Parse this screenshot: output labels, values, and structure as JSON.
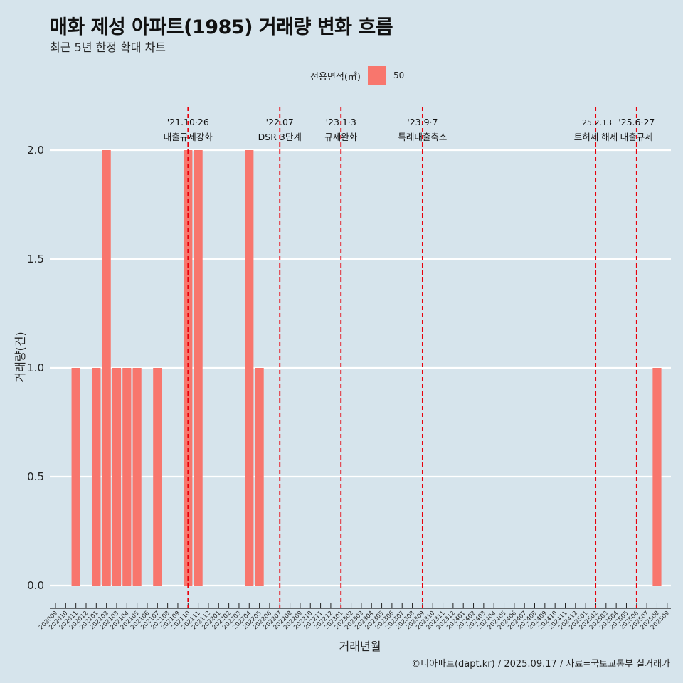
{
  "title": "매화 제성 아파트(1985) 거래량 변화 흐름",
  "subtitle": "최근 5년 한정 확대 차트",
  "caption": "©디아파트(dapt.kr) / 2025.09.17 / 자료=국토교통부 실거래가",
  "legend": {
    "title": "전용면적(㎡)",
    "items": [
      {
        "label": "50",
        "color": "#f8766d"
      }
    ]
  },
  "colors": {
    "bar": "#f8766d",
    "background": "#d6e4ec",
    "grid": "#ffffff",
    "event_line": "#e8000b"
  },
  "chart_data": {
    "type": "bar",
    "xlabel": "거래년월",
    "ylabel": "거래량(건)",
    "ylim": [
      0,
      2
    ],
    "yticks": [
      "0.0",
      "0.5",
      "1.0",
      "1.5",
      "2.0"
    ],
    "grid": true,
    "legend_position": "top",
    "categories": [
      "202009",
      "202010",
      "202011",
      "202012",
      "202101",
      "202102",
      "202103",
      "202104",
      "202105",
      "202106",
      "202107",
      "202108",
      "202109",
      "202110",
      "202111",
      "202112",
      "202201",
      "202202",
      "202203",
      "202204",
      "202205",
      "202206",
      "202207",
      "202208",
      "202209",
      "202210",
      "202211",
      "202212",
      "202301",
      "202302",
      "202303",
      "202304",
      "202305",
      "202306",
      "202307",
      "202308",
      "202309",
      "202310",
      "202311",
      "202312",
      "202401",
      "202402",
      "202403",
      "202404",
      "202405",
      "202406",
      "202407",
      "202408",
      "202409",
      "202410",
      "202411",
      "202412",
      "202501",
      "202502",
      "202503",
      "202504",
      "202505",
      "202506",
      "202507",
      "202508",
      "202509"
    ],
    "series": [
      {
        "name": "50",
        "values": [
          0,
          0,
          1,
          0,
          1,
          2,
          1,
          1,
          1,
          0,
          1,
          0,
          0,
          2,
          2,
          0,
          0,
          0,
          0,
          2,
          1,
          0,
          0,
          0,
          0,
          0,
          0,
          0,
          0,
          0,
          0,
          0,
          0,
          0,
          0,
          0,
          0,
          0,
          0,
          0,
          0,
          0,
          0,
          0,
          0,
          0,
          0,
          0,
          0,
          0,
          0,
          0,
          0,
          0,
          0,
          0,
          0,
          0,
          0,
          1,
          0
        ]
      }
    ],
    "events": [
      {
        "x": "202110",
        "date": "'21.10·26",
        "label": "대출규제강화"
      },
      {
        "x": "202207",
        "date": "'22.07",
        "label": "DSR 3단계"
      },
      {
        "x": "202301",
        "date": "'23.1·3",
        "label": "규제완화"
      },
      {
        "x": "202309",
        "date": "'23.9·7",
        "label": "특례대출축소"
      },
      {
        "x": "202502",
        "date": "'25.2.13",
        "label": "토허제 해제"
      },
      {
        "x": "202506",
        "date": "'25.6·27",
        "label": "대출규제"
      }
    ]
  }
}
